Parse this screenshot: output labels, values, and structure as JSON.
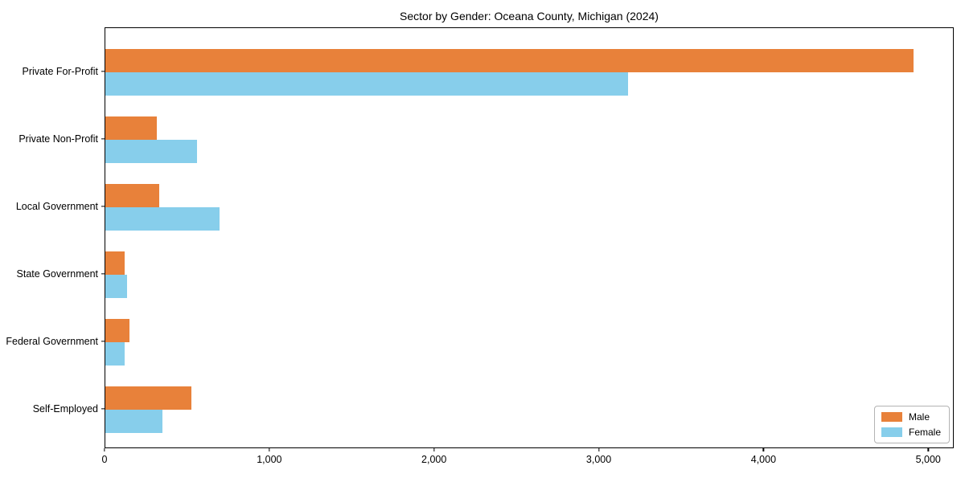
{
  "title": "Sector by Gender: Oceana County, Michigan (2024)",
  "chart_data": {
    "type": "bar",
    "orientation": "horizontal",
    "title": "Sector by Gender: Oceana County, Michigan (2024)",
    "categories": [
      "Private For-Profit",
      "Private Non-Profit",
      "Local Government",
      "State Government",
      "Federal Government",
      "Self-Employed"
    ],
    "series": [
      {
        "name": "Male",
        "color": "#e8813a",
        "values": [
          4915,
          315,
          330,
          115,
          147,
          525
        ]
      },
      {
        "name": "Female",
        "color": "#87ceeb",
        "values": [
          3180,
          560,
          695,
          132,
          117,
          345
        ]
      }
    ],
    "xlabel": "",
    "ylabel": "",
    "xlim": [
      0,
      5155
    ],
    "xticks": [
      0,
      1000,
      2000,
      3000,
      4000,
      5000
    ],
    "xtick_labels": [
      "0",
      "1,000",
      "2,000",
      "3,000",
      "4,000",
      "5,000"
    ],
    "grid": false,
    "legend": {
      "position": "lower right",
      "entries": [
        "Male",
        "Female"
      ]
    },
    "colors": {
      "male": "#e8813a",
      "female": "#87ceeb",
      "axis": "#000000",
      "legend_border": "#b3b3b3",
      "background": "#ffffff"
    }
  }
}
